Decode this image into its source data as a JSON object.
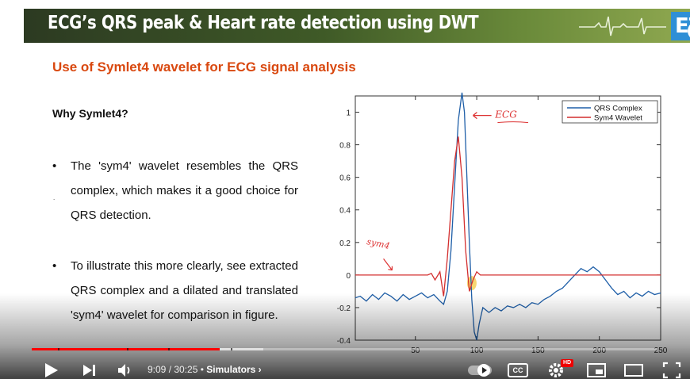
{
  "banner": {
    "title": "ECG’s QRS peak & Heart rate detection using DWT",
    "logo_text": "ET",
    "info_glyph": "i"
  },
  "slide": {
    "subtitle": "Use of Symlet4 wavelet for ECG signal analysis",
    "why_heading": "Why Symlet4?",
    "bullet_1": "The 'sym4' wavelet resembles the QRS complex, which makes it a good choice for QRS detection.",
    "bullet_2": "To illustrate this more clearly, see extracted QRS complex and a dilated and translated 'sym4' wavelet for comparison in figure.",
    "bullet_marker": "•",
    "annotation_ecg": "ECG",
    "annotation_sym": "sym4"
  },
  "chart_data": {
    "type": "line",
    "xlim": [
      1,
      250
    ],
    "ylim": [
      -0.4,
      1.1
    ],
    "xticks": [
      50,
      100,
      150,
      200,
      250
    ],
    "yticks": [
      -0.4,
      -0.2,
      0,
      0.2,
      0.4,
      0.6,
      0.8,
      1
    ],
    "ytick_labels": [
      "-0.4",
      "-0.2",
      "0",
      "0.2",
      "0.4",
      "0.6",
      "0.8",
      "1"
    ],
    "xtick_labels": [
      "50",
      "100",
      "150",
      "200",
      "250"
    ],
    "legend_position": "top-right",
    "series": [
      {
        "name": "QRS Complex",
        "color": "#1f5fa8",
        "x": [
          1,
          5,
          10,
          15,
          20,
          25,
          30,
          35,
          40,
          45,
          50,
          55,
          60,
          65,
          70,
          73,
          76,
          79,
          82,
          85,
          88,
          90,
          92,
          94,
          96,
          98,
          100,
          102,
          105,
          110,
          115,
          120,
          125,
          130,
          135,
          140,
          145,
          150,
          155,
          160,
          165,
          170,
          175,
          180,
          185,
          190,
          195,
          200,
          205,
          210,
          215,
          220,
          225,
          230,
          235,
          240,
          245,
          250
        ],
        "values": [
          -0.14,
          -0.13,
          -0.16,
          -0.12,
          -0.15,
          -0.11,
          -0.13,
          -0.16,
          -0.12,
          -0.15,
          -0.13,
          -0.11,
          -0.14,
          -0.12,
          -0.16,
          -0.18,
          -0.1,
          0.15,
          0.55,
          0.95,
          1.12,
          1.0,
          0.6,
          0.2,
          -0.15,
          -0.35,
          -0.4,
          -0.3,
          -0.2,
          -0.23,
          -0.2,
          -0.22,
          -0.19,
          -0.2,
          -0.18,
          -0.2,
          -0.17,
          -0.18,
          -0.15,
          -0.13,
          -0.1,
          -0.08,
          -0.04,
          0.0,
          0.04,
          0.02,
          0.05,
          0.02,
          -0.03,
          -0.08,
          -0.12,
          -0.1,
          -0.14,
          -0.11,
          -0.13,
          -0.1,
          -0.12,
          -0.11
        ]
      },
      {
        "name": "Sym4 Wavelet",
        "color": "#d32f2f",
        "x": [
          1,
          60,
          63,
          66,
          70,
          73,
          76,
          79,
          82,
          85,
          88,
          91,
          94,
          97,
          100,
          103,
          106,
          250
        ],
        "values": [
          0,
          0,
          0.01,
          -0.03,
          0.02,
          -0.13,
          0.1,
          0.4,
          0.7,
          0.85,
          0.6,
          0.15,
          -0.1,
          -0.03,
          0.02,
          0,
          0,
          0
        ]
      }
    ]
  },
  "controls": {
    "current_time": "9:09",
    "separator": " / ",
    "duration": "30:25",
    "dot": " • ",
    "chapter": "Simulators",
    "chapter_chevron": "›",
    "cc_label": "CC",
    "hd_badge": "HD",
    "progress_played": 0.3,
    "progress_buffered": 0.37
  }
}
